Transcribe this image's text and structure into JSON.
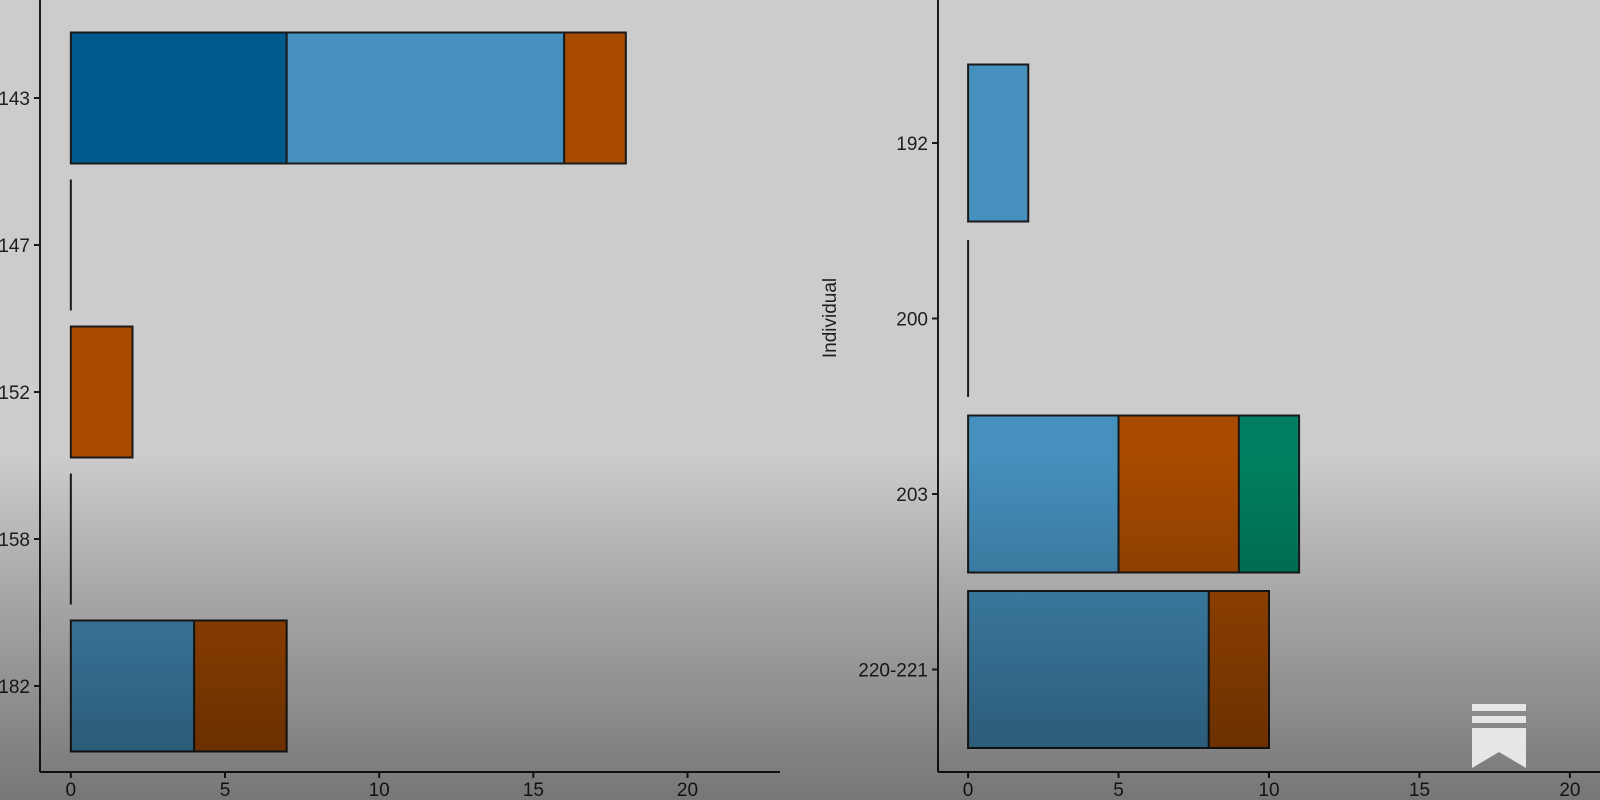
{
  "chart_data": [
    {
      "type": "bar",
      "orientation": "horizontal",
      "stacked": true,
      "title": "",
      "xlabel": "",
      "ylabel": "",
      "xlim": [
        -1,
        23
      ],
      "x_ticks": [
        0,
        5,
        10,
        15,
        20
      ],
      "categories": [
        "143",
        "147",
        "152",
        "158",
        "182"
      ],
      "series": [
        {
          "color": "#005a8e",
          "values": [
            7,
            0,
            0,
            0,
            0
          ]
        },
        {
          "color": "#4590bd",
          "values": [
            9,
            0,
            0,
            0,
            4
          ]
        },
        {
          "color": "#a84b00",
          "values": [
            2,
            0,
            2,
            0,
            3
          ]
        },
        {
          "color": "#008060",
          "values": [
            0,
            0,
            0,
            0,
            0
          ]
        }
      ]
    },
    {
      "type": "bar",
      "orientation": "horizontal",
      "stacked": true,
      "title": "",
      "xlabel": "",
      "ylabel": "Individual",
      "xlim": [
        -1,
        21
      ],
      "x_ticks": [
        0,
        5,
        10,
        15,
        20
      ],
      "categories": [
        "192",
        "200",
        "203",
        "220-221"
      ],
      "series": [
        {
          "color": "#005a8e",
          "values": [
            0,
            0,
            0,
            0
          ]
        },
        {
          "color": "#4590bd",
          "values": [
            2,
            0,
            5,
            8
          ]
        },
        {
          "color": "#a84b00",
          "values": [
            0,
            0,
            4,
            2
          ]
        },
        {
          "color": "#008060",
          "values": [
            0,
            0,
            2,
            0
          ]
        }
      ]
    }
  ],
  "watermark": {
    "icon": "bookmark-stack-icon"
  }
}
